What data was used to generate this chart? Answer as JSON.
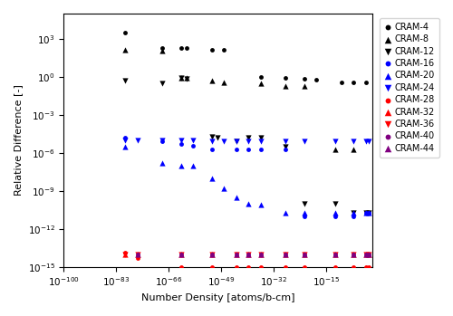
{
  "xlabel": "Number Density [atoms/b-cm]",
  "ylabel": "Relative Difference [-]",
  "series": [
    {
      "label": "CRAM-4",
      "color": "black",
      "marker": "o",
      "ms": 3.5,
      "x": [
        1e-80,
        1e-68,
        1e-62,
        1e-60,
        1e-52,
        1e-48,
        1e-36,
        1e-28,
        1e-22,
        1e-18,
        1e-10,
        1e-06,
        0.01
      ],
      "y": [
        3000.0,
        200.0,
        200.0,
        200.0,
        150.0,
        150.0,
        1.0,
        0.8,
        0.7,
        0.6,
        0.4,
        0.4,
        0.4
      ]
    },
    {
      "label": "CRAM-8",
      "color": "black",
      "marker": "^",
      "ms": 4.5,
      "x": [
        1e-80,
        1e-68,
        1e-62,
        1e-60,
        1e-52,
        1e-48,
        1e-36,
        1e-28,
        1e-22,
        1e-12,
        1e-06
      ],
      "y": [
        150.0,
        120.0,
        0.9,
        0.8,
        0.5,
        0.4,
        0.3,
        0.2,
        0.2,
        2e-06,
        2e-06
      ]
    },
    {
      "label": "CRAM-12",
      "color": "black",
      "marker": "v",
      "ms": 4.5,
      "x": [
        1e-80,
        1e-68,
        1e-62,
        1e-60,
        1e-52,
        1e-50,
        1e-44,
        1e-40,
        1e-36,
        1e-28,
        1e-22,
        1e-12,
        1e-06,
        0.01,
        0.1
      ],
      "y": [
        0.5,
        0.3,
        0.8,
        0.7,
        2e-05,
        1.5e-05,
        8e-06,
        1.5e-05,
        1.5e-05,
        3e-06,
        1e-10,
        1e-10,
        2e-11,
        2e-11,
        2e-11
      ]
    },
    {
      "label": "CRAM-16",
      "color": "blue",
      "marker": "o",
      "ms": 3.5,
      "x": [
        1e-80,
        1e-68,
        1e-62,
        1e-58,
        1e-52,
        1e-44,
        1e-40,
        1e-36,
        1e-28,
        1e-22,
        1e-12,
        1e-06,
        0.01,
        0.1
      ],
      "y": [
        1.5e-05,
        8e-06,
        5e-06,
        4e-06,
        2e-06,
        2e-06,
        2e-06,
        2e-06,
        2e-06,
        1e-11,
        1e-11,
        1e-11,
        2e-11,
        2e-11
      ]
    },
    {
      "label": "CRAM-20",
      "color": "blue",
      "marker": "^",
      "ms": 4.5,
      "x": [
        1e-80,
        1e-68,
        1e-62,
        1e-58,
        1e-52,
        1e-48,
        1e-44,
        1e-40,
        1e-36,
        1e-28,
        1e-22,
        1e-12,
        1e-06,
        0.01,
        0.1
      ],
      "y": [
        3e-06,
        1.5e-07,
        1e-07,
        1e-07,
        1e-08,
        1.5e-09,
        3e-10,
        1e-10,
        8e-11,
        2e-11,
        2e-11,
        2e-11,
        2e-11,
        2e-11,
        2e-11
      ]
    },
    {
      "label": "CRAM-24",
      "color": "blue",
      "marker": "v",
      "ms": 4.5,
      "x": [
        1e-80,
        1e-76,
        1e-68,
        1e-62,
        1e-58,
        1e-52,
        1e-48,
        1e-44,
        1e-40,
        1e-36,
        1e-28,
        1e-22,
        1e-12,
        1e-06,
        0.01,
        0.1
      ],
      "y": [
        1e-05,
        1e-05,
        1e-05,
        1e-05,
        1e-05,
        8e-06,
        8e-06,
        8e-06,
        8e-06,
        8e-06,
        8e-06,
        8e-06,
        8e-06,
        8e-06,
        8e-06,
        8e-06
      ]
    },
    {
      "label": "CRAM-28",
      "color": "red",
      "marker": "o",
      "ms": 3.5,
      "x": [
        1e-80,
        1e-76,
        1e-62,
        1e-52,
        1e-44,
        1e-40,
        1e-36,
        1e-28,
        1e-22,
        1e-12,
        1e-06,
        0.01,
        0.1
      ],
      "y": [
        1.3e-14,
        5e-15,
        1e-15,
        1e-15,
        1e-15,
        1e-15,
        1e-15,
        1e-15,
        1e-15,
        1e-15,
        1e-15,
        1e-15,
        1e-15
      ]
    },
    {
      "label": "CRAM-32",
      "color": "red",
      "marker": "^",
      "ms": 4.5,
      "x": [
        1e-80,
        1e-76,
        1e-62,
        1e-52,
        1e-44,
        1e-40,
        1e-36,
        1e-28,
        1e-22,
        1e-12,
        1e-06,
        0.01,
        0.1
      ],
      "y": [
        1e-14,
        1e-14,
        1e-14,
        1e-14,
        1e-14,
        1e-14,
        1e-14,
        1e-14,
        1e-14,
        1e-14,
        1e-14,
        1e-14,
        1e-14
      ]
    },
    {
      "label": "CRAM-36",
      "color": "red",
      "marker": "v",
      "ms": 4.5,
      "x": [
        1e-80,
        1e-76,
        1e-62,
        1e-52,
        1e-44,
        1e-40,
        1e-36,
        1e-28,
        1e-22,
        1e-12,
        1e-06,
        0.01,
        0.1
      ],
      "y": [
        1e-14,
        1e-14,
        1e-14,
        1e-14,
        1e-14,
        1e-14,
        1e-14,
        1e-14,
        1e-14,
        1e-14,
        1e-14,
        1e-14,
        1e-14
      ]
    },
    {
      "label": "CRAM-40",
      "color": "purple",
      "marker": "o",
      "ms": 3.5,
      "x": [
        1e-76,
        1e-62,
        1e-52,
        1e-44,
        1e-40,
        1e-36,
        1e-28,
        1e-22,
        1e-12,
        1e-06,
        0.01,
        0.1
      ],
      "y": [
        1e-14,
        1e-14,
        1e-14,
        1e-14,
        1e-14,
        1e-14,
        1e-14,
        1e-14,
        1e-14,
        1e-14,
        1e-14,
        1e-14
      ]
    },
    {
      "label": "CRAM-44",
      "color": "purple",
      "marker": "^",
      "ms": 4.5,
      "x": [
        1e-76,
        1e-62,
        1e-52,
        1e-44,
        1e-40,
        1e-36,
        1e-28,
        1e-22,
        1e-12,
        1e-06,
        0.01,
        0.1
      ],
      "y": [
        1e-14,
        1e-14,
        1e-14,
        1e-14,
        1e-14,
        1e-14,
        1e-14,
        1e-14,
        1e-14,
        1e-14,
        1e-14,
        1e-14
      ]
    }
  ]
}
